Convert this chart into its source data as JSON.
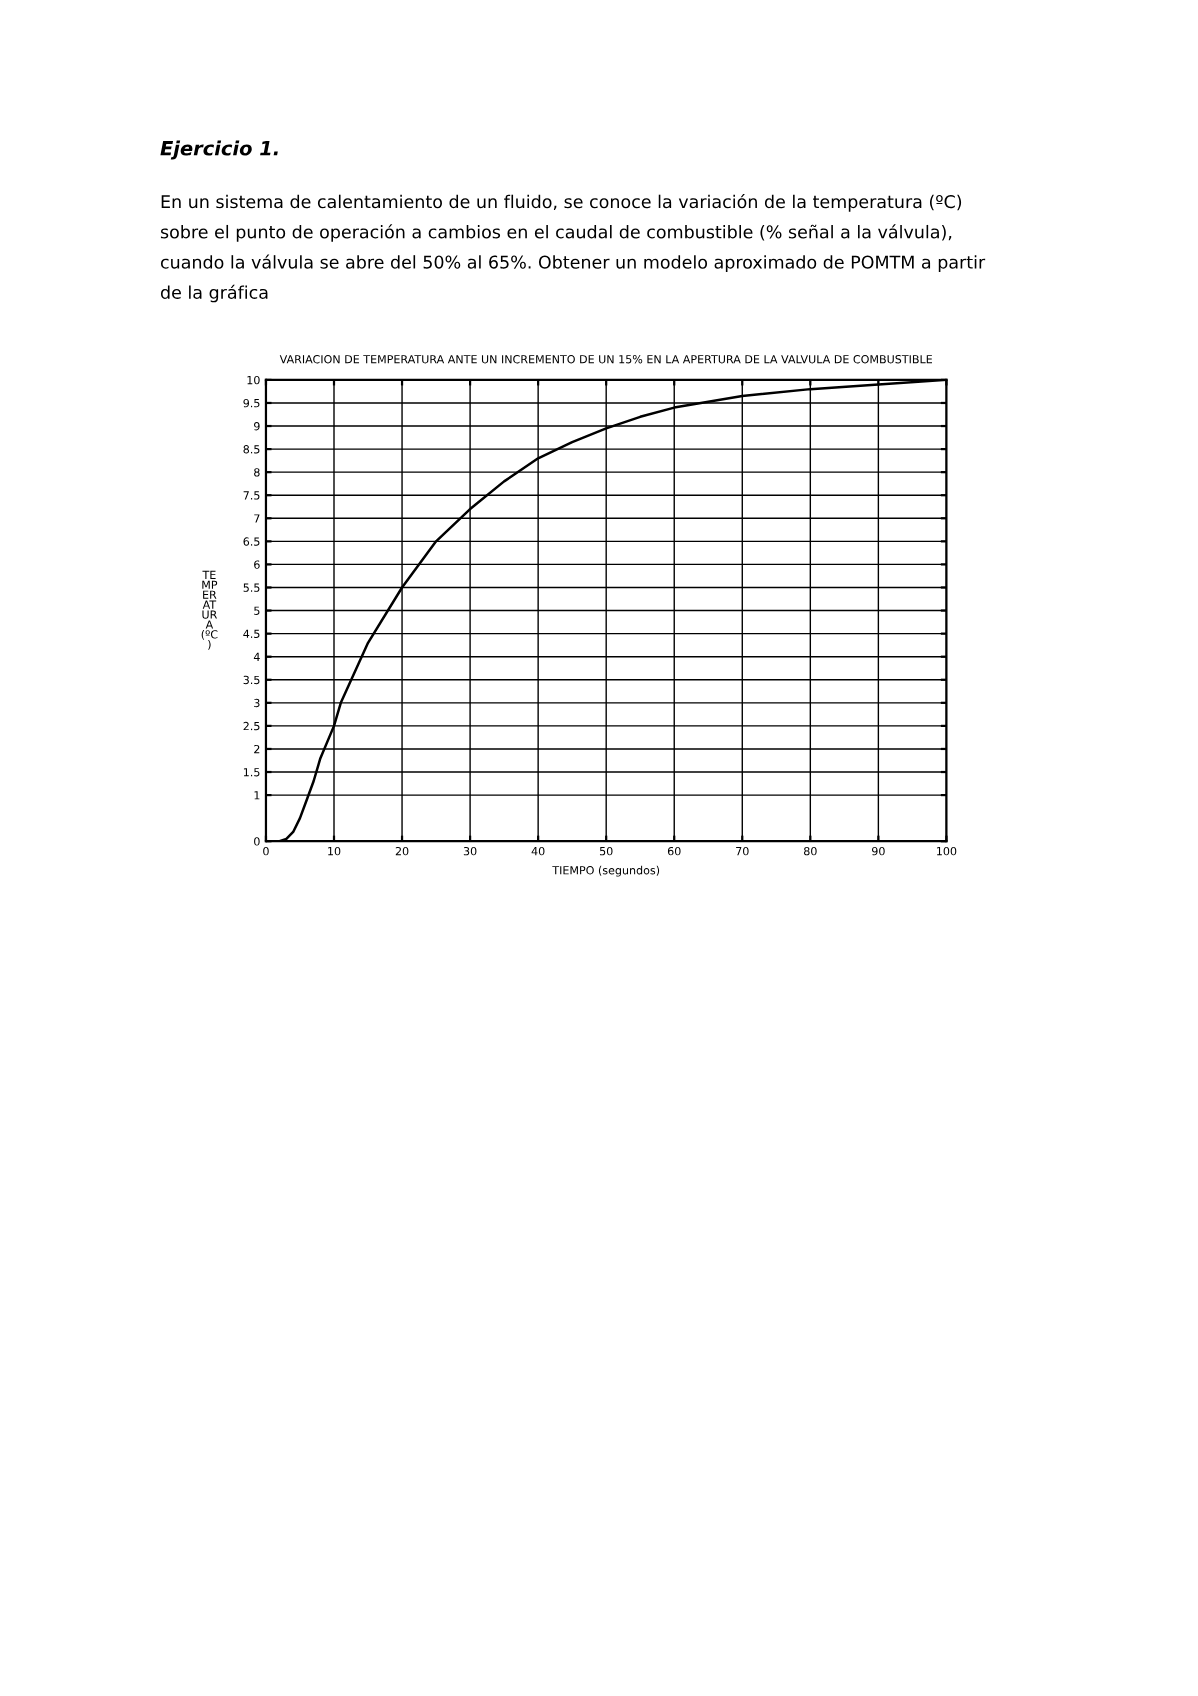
{
  "chart_data": {
    "type": "line",
    "title": "VARIACION DE TEMPERATURA ANTE UN INCREMENTO DE UN 15% EN LA APERTURA DE LA VALVULA DE COMBUSTIBLE",
    "xlabel": "TIEMPO (segundos)",
    "ylabel": "TE\nMP\nER\nAT\nUR\nA\n(ºC\n)",
    "annotations": [
      "Ejercicio 1.",
      "En un sistema de calentamiento de un fluido, se conoce la variación de la temperatura (ºC)\nsobre el punto de operación a cambios en el caudal de combustible (% señal a la válvula),\ncuando la válvula se abre del 50% al 65%. Obtener un modelo aproximado de POMTM a partir\nde la gráfica"
    ],
    "x": [
      0,
      2,
      3,
      4,
      5,
      6,
      7,
      8,
      10,
      11,
      15,
      20,
      25,
      30,
      35,
      40,
      45,
      50,
      55,
      60,
      70,
      80,
      90,
      100
    ],
    "series": [
      {
        "color": "#000000",
        "values": [
          0,
          0,
          0.05,
          0.2,
          0.5,
          0.9,
          1.3,
          1.8,
          2.5,
          3,
          4.3,
          5.5,
          6.5,
          7.2,
          7.8,
          8.3,
          8.65,
          8.95,
          9.2,
          9.4,
          9.65,
          9.8,
          9.9,
          10
        ]
      }
    ],
    "xlim": [
      0,
      100
    ],
    "xticks": [
      0,
      10,
      20,
      30,
      40,
      50,
      60,
      70,
      80,
      90,
      100
    ],
    "ylim": [
      0,
      10
    ],
    "yticks": [
      0,
      1,
      1.5,
      2,
      2.5,
      3,
      3.5,
      4,
      4.5,
      5,
      5.5,
      6,
      6.5,
      7,
      7.5,
      8,
      8.5,
      9,
      9.5,
      10
    ],
    "grid": true,
    "line_style": "solid"
  }
}
